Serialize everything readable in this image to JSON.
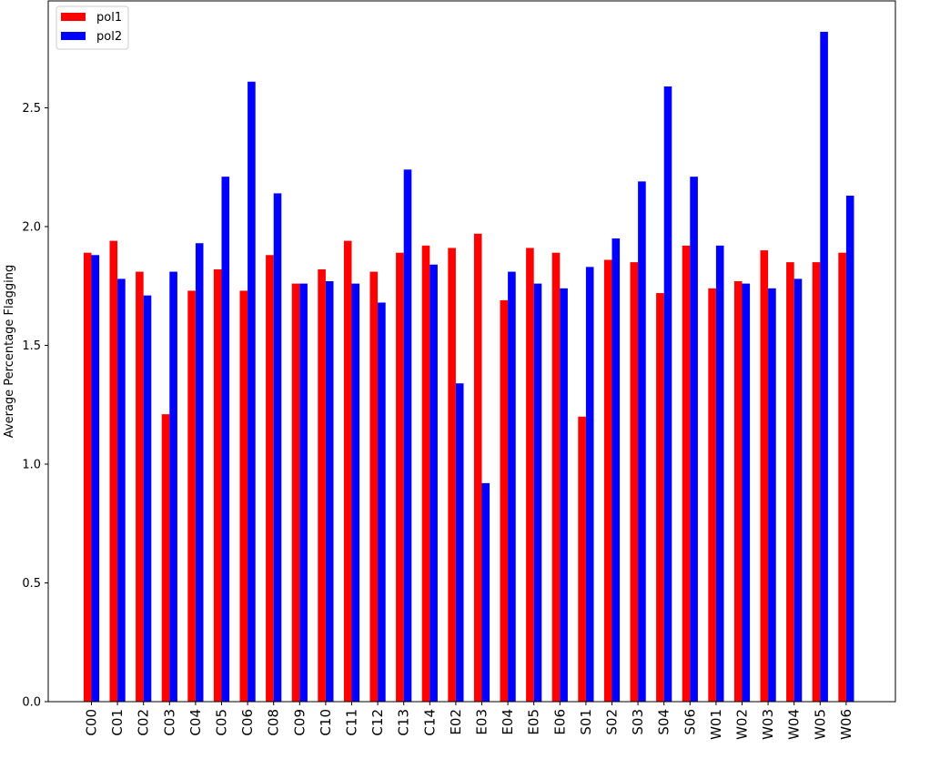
{
  "chart_data": {
    "type": "bar",
    "title": "",
    "xlabel": "",
    "ylabel": "Average Percentage Flagging",
    "ylim": [
      0,
      2.95
    ],
    "yticks": [
      "0.0",
      "0.5",
      "1.0",
      "1.5",
      "2.0",
      "2.5"
    ],
    "legend_position": "top-left",
    "grid": false,
    "categories": [
      "C00",
      "C01",
      "C02",
      "C03",
      "C04",
      "C05",
      "C06",
      "C08",
      "C09",
      "C10",
      "C11",
      "C12",
      "C13",
      "C14",
      "E02",
      "E03",
      "E04",
      "E05",
      "E06",
      "S01",
      "S02",
      "S03",
      "S04",
      "S06",
      "W01",
      "W02",
      "W03",
      "W04",
      "W05",
      "W06"
    ],
    "series": [
      {
        "name": "pol1",
        "color": "#ff0000",
        "values": [
          1.89,
          1.94,
          1.81,
          1.21,
          1.73,
          1.82,
          1.73,
          1.88,
          1.76,
          1.82,
          1.94,
          1.81,
          1.89,
          1.92,
          1.91,
          1.97,
          1.69,
          1.91,
          1.89,
          1.2,
          1.86,
          1.85,
          1.72,
          1.92,
          1.74,
          1.77,
          1.9,
          1.85,
          1.85,
          1.89
        ]
      },
      {
        "name": "pol2",
        "color": "#0000ff",
        "values": [
          1.88,
          1.78,
          1.71,
          1.81,
          1.93,
          2.21,
          2.61,
          2.14,
          1.76,
          1.77,
          1.76,
          1.68,
          2.24,
          1.84,
          1.34,
          0.92,
          1.81,
          1.76,
          1.74,
          1.83,
          1.95,
          2.19,
          2.59,
          2.21,
          1.92,
          1.76,
          1.74,
          1.78,
          2.82,
          2.13
        ]
      }
    ]
  }
}
